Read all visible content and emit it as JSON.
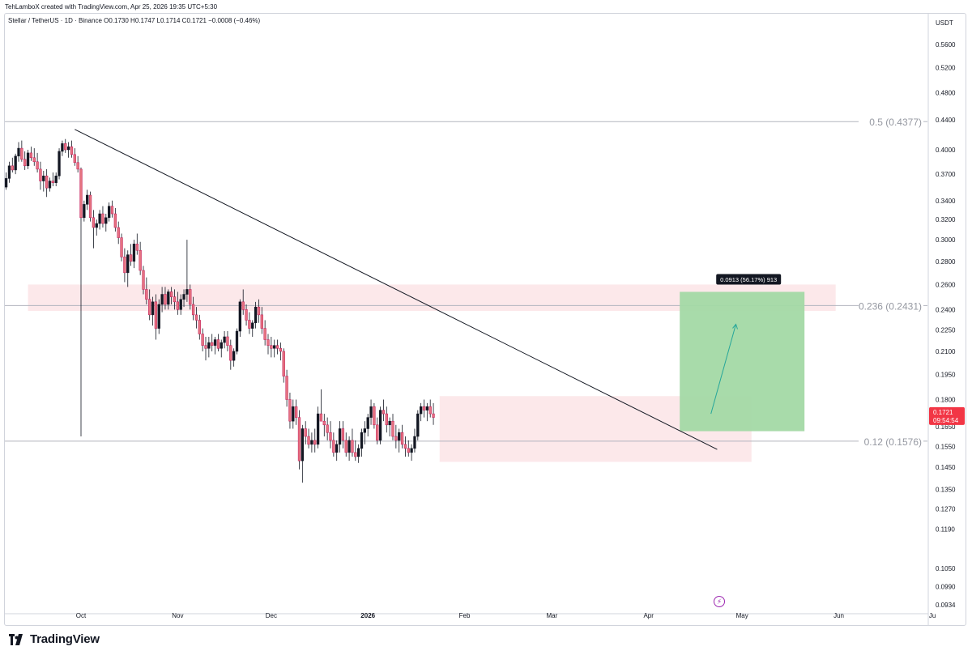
{
  "header": {
    "credit": "TehLamboX created with TradingView.com, Apr 25, 2026 19:35 UTC+5:30",
    "symbol": "Stellar / TetherUS · 1D · Binance",
    "ohlc": "O0.1730 H0.1747 L0.1714 C0.1721 −0.0008 (−0.46%)"
  },
  "brand": {
    "name": "TradingView",
    "logo": "tradingview-logo-icon"
  },
  "chart_data": {
    "type": "candlestick",
    "currency": "USDT",
    "ylim": [
      0.088,
      0.64
    ],
    "y_scale": "log",
    "y_ticks": [
      "0.5600",
      "0.5200",
      "0.4800",
      "0.4400",
      "0.4000",
      "0.3700",
      "0.3400",
      "0.3200",
      "0.3000",
      "0.2800",
      "0.2600",
      "0.2400",
      "0.2250",
      "0.2100",
      "0.1950",
      "0.1800",
      "0.1650",
      "0.1550",
      "0.1450",
      "0.1350",
      "0.1270",
      "0.1190",
      "0.1050",
      "0.0990",
      "0.0934"
    ],
    "x_ticks": [
      {
        "label": "Oct",
        "day": 0
      },
      {
        "label": "Nov",
        "day": 31
      },
      {
        "label": "Dec",
        "day": 61
      },
      {
        "label": "2026",
        "day": 92,
        "bold": true
      },
      {
        "label": "Feb",
        "day": 123
      },
      {
        "label": "Mar",
        "day": 151
      },
      {
        "label": "Apr",
        "day": 182
      },
      {
        "label": "May",
        "day": 212
      },
      {
        "label": "Jun",
        "day": 243
      },
      {
        "label": "Ju",
        "day": 273
      }
    ],
    "last_price": {
      "value": "0.1721",
      "countdown": "09:54:54",
      "color": "#f23645"
    },
    "fib_levels": [
      {
        "label": "0.5 (0.4377)",
        "price": 0.4377
      },
      {
        "label": "0.236 (0.2431)",
        "price": 0.2431
      },
      {
        "label": "0.12 (0.1576)",
        "price": 0.1576
      }
    ],
    "zones": [
      {
        "name": "resistance-zone",
        "day_from": -17,
        "day_to": 242,
        "price_top": 0.26,
        "price_bottom": 0.239,
        "color": "#fce4e6"
      },
      {
        "name": "range-zone",
        "day_from": 115,
        "day_to": 215,
        "price_top": 0.182,
        "price_bottom": 0.1475,
        "color": "#fce4e6"
      }
    ],
    "trendline": {
      "from": {
        "day": -2,
        "price": 0.427
      },
      "to": {
        "day": 204,
        "price": 0.1535
      }
    },
    "projection": {
      "label": "0.0913 (56.17%) 913",
      "day_from": 192,
      "day_to": 232,
      "price_top": 0.254,
      "price_bottom": 0.1627,
      "color": "#a3d9a5",
      "arrow_from": {
        "day": 202,
        "price": 0.172
      },
      "arrow_to": {
        "day": 210,
        "price": 0.229
      }
    },
    "candles": [
      [
        0.355,
        0.372,
        0.352,
        0.365
      ],
      [
        0.365,
        0.385,
        0.36,
        0.38
      ],
      [
        0.38,
        0.39,
        0.372,
        0.375
      ],
      [
        0.375,
        0.395,
        0.37,
        0.392
      ],
      [
        0.392,
        0.41,
        0.385,
        0.402
      ],
      [
        0.402,
        0.412,
        0.385,
        0.388
      ],
      [
        0.388,
        0.398,
        0.375,
        0.38
      ],
      [
        0.38,
        0.4,
        0.376,
        0.396
      ],
      [
        0.396,
        0.404,
        0.386,
        0.39
      ],
      [
        0.39,
        0.402,
        0.38,
        0.385
      ],
      [
        0.385,
        0.396,
        0.372,
        0.376
      ],
      [
        0.376,
        0.385,
        0.352,
        0.362
      ],
      [
        0.362,
        0.374,
        0.35,
        0.368
      ],
      [
        0.368,
        0.376,
        0.344,
        0.354
      ],
      [
        0.354,
        0.366,
        0.35,
        0.362
      ],
      [
        0.362,
        0.372,
        0.356,
        0.36
      ],
      [
        0.36,
        0.372,
        0.356,
        0.368
      ],
      [
        0.368,
        0.402,
        0.364,
        0.398
      ],
      [
        0.398,
        0.412,
        0.392,
        0.408
      ],
      [
        0.408,
        0.414,
        0.396,
        0.4
      ],
      [
        0.4,
        0.41,
        0.39,
        0.404
      ],
      [
        0.404,
        0.412,
        0.39,
        0.394
      ],
      [
        0.394,
        0.402,
        0.38,
        0.384
      ],
      [
        0.384,
        0.392,
        0.372,
        0.376
      ],
      [
        0.376,
        0.378,
        0.16,
        0.322
      ],
      [
        0.322,
        0.34,
        0.318,
        0.336
      ],
      [
        0.336,
        0.352,
        0.33,
        0.346
      ],
      [
        0.346,
        0.35,
        0.318,
        0.322
      ],
      [
        0.322,
        0.33,
        0.292,
        0.312
      ],
      [
        0.312,
        0.32,
        0.304,
        0.316
      ],
      [
        0.316,
        0.33,
        0.31,
        0.326
      ],
      [
        0.326,
        0.334,
        0.312,
        0.316
      ],
      [
        0.316,
        0.326,
        0.308,
        0.322
      ],
      [
        0.322,
        0.338,
        0.318,
        0.334
      ],
      [
        0.334,
        0.34,
        0.322,
        0.326
      ],
      [
        0.326,
        0.332,
        0.308,
        0.312
      ],
      [
        0.312,
        0.318,
        0.296,
        0.302
      ],
      [
        0.302,
        0.306,
        0.28,
        0.284
      ],
      [
        0.284,
        0.292,
        0.262,
        0.27
      ],
      [
        0.27,
        0.29,
        0.258,
        0.286
      ],
      [
        0.286,
        0.296,
        0.276,
        0.28
      ],
      [
        0.28,
        0.3,
        0.274,
        0.296
      ],
      [
        0.296,
        0.306,
        0.286,
        0.29
      ],
      [
        0.29,
        0.298,
        0.268,
        0.272
      ],
      [
        0.272,
        0.276,
        0.252,
        0.256
      ],
      [
        0.256,
        0.266,
        0.244,
        0.248
      ],
      [
        0.248,
        0.256,
        0.232,
        0.236
      ],
      [
        0.236,
        0.25,
        0.228,
        0.246
      ],
      [
        0.246,
        0.252,
        0.218,
        0.226
      ],
      [
        0.226,
        0.248,
        0.222,
        0.244
      ],
      [
        0.244,
        0.258,
        0.238,
        0.252
      ],
      [
        0.252,
        0.258,
        0.24,
        0.244
      ],
      [
        0.244,
        0.256,
        0.24,
        0.254
      ],
      [
        0.254,
        0.258,
        0.244,
        0.25
      ],
      [
        0.25,
        0.256,
        0.24,
        0.246
      ],
      [
        0.246,
        0.254,
        0.236,
        0.24
      ],
      [
        0.24,
        0.252,
        0.236,
        0.248
      ],
      [
        0.248,
        0.256,
        0.242,
        0.252
      ],
      [
        0.252,
        0.3,
        0.246,
        0.256
      ],
      [
        0.256,
        0.26,
        0.24,
        0.244
      ],
      [
        0.244,
        0.25,
        0.232,
        0.236
      ],
      [
        0.236,
        0.242,
        0.226,
        0.232
      ],
      [
        0.232,
        0.236,
        0.218,
        0.222
      ],
      [
        0.222,
        0.226,
        0.21,
        0.214
      ],
      [
        0.214,
        0.22,
        0.204,
        0.212
      ],
      [
        0.212,
        0.22,
        0.206,
        0.216
      ],
      [
        0.216,
        0.222,
        0.21,
        0.214
      ],
      [
        0.214,
        0.22,
        0.208,
        0.218
      ],
      [
        0.218,
        0.222,
        0.21,
        0.212
      ],
      [
        0.212,
        0.218,
        0.206,
        0.216
      ],
      [
        0.216,
        0.224,
        0.212,
        0.22
      ],
      [
        0.22,
        0.224,
        0.21,
        0.214
      ],
      [
        0.214,
        0.218,
        0.198,
        0.204
      ],
      [
        0.204,
        0.212,
        0.2,
        0.21
      ],
      [
        0.21,
        0.226,
        0.208,
        0.224
      ],
      [
        0.224,
        0.248,
        0.22,
        0.246
      ],
      [
        0.246,
        0.256,
        0.236,
        0.24
      ],
      [
        0.24,
        0.244,
        0.228,
        0.232
      ],
      [
        0.232,
        0.238,
        0.222,
        0.226
      ],
      [
        0.226,
        0.232,
        0.22,
        0.23
      ],
      [
        0.23,
        0.246,
        0.226,
        0.242
      ],
      [
        0.242,
        0.248,
        0.23,
        0.236
      ],
      [
        0.236,
        0.242,
        0.222,
        0.226
      ],
      [
        0.226,
        0.232,
        0.214,
        0.218
      ],
      [
        0.218,
        0.222,
        0.208,
        0.214
      ],
      [
        0.214,
        0.22,
        0.206,
        0.212
      ],
      [
        0.212,
        0.218,
        0.206,
        0.214
      ],
      [
        0.214,
        0.218,
        0.208,
        0.212
      ],
      [
        0.212,
        0.216,
        0.204,
        0.21
      ],
      [
        0.21,
        0.212,
        0.19,
        0.194
      ],
      [
        0.194,
        0.198,
        0.176,
        0.18
      ],
      [
        0.18,
        0.184,
        0.164,
        0.168
      ],
      [
        0.168,
        0.18,
        0.164,
        0.176
      ],
      [
        0.176,
        0.18,
        0.166,
        0.17
      ],
      [
        0.17,
        0.174,
        0.144,
        0.148
      ],
      [
        0.148,
        0.166,
        0.138,
        0.164
      ],
      [
        0.164,
        0.168,
        0.156,
        0.16
      ],
      [
        0.16,
        0.164,
        0.154,
        0.156
      ],
      [
        0.156,
        0.162,
        0.152,
        0.158
      ],
      [
        0.158,
        0.164,
        0.152,
        0.156
      ],
      [
        0.156,
        0.176,
        0.154,
        0.172
      ],
      [
        0.172,
        0.186,
        0.168,
        0.168
      ],
      [
        0.168,
        0.172,
        0.16,
        0.166
      ],
      [
        0.166,
        0.17,
        0.158,
        0.162
      ],
      [
        0.162,
        0.168,
        0.154,
        0.158
      ],
      [
        0.158,
        0.162,
        0.15,
        0.152
      ],
      [
        0.152,
        0.158,
        0.148,
        0.156
      ],
      [
        0.156,
        0.168,
        0.152,
        0.164
      ],
      [
        0.164,
        0.168,
        0.154,
        0.158
      ],
      [
        0.158,
        0.162,
        0.15,
        0.152
      ],
      [
        0.152,
        0.16,
        0.148,
        0.158
      ],
      [
        0.158,
        0.164,
        0.15,
        0.152
      ],
      [
        0.152,
        0.158,
        0.148,
        0.15
      ],
      [
        0.15,
        0.156,
        0.147,
        0.154
      ],
      [
        0.154,
        0.164,
        0.15,
        0.162
      ],
      [
        0.162,
        0.168,
        0.156,
        0.164
      ],
      [
        0.164,
        0.172,
        0.16,
        0.17
      ],
      [
        0.17,
        0.18,
        0.166,
        0.176
      ],
      [
        0.176,
        0.178,
        0.164,
        0.166
      ],
      [
        0.166,
        0.17,
        0.156,
        0.158
      ],
      [
        0.158,
        0.176,
        0.156,
        0.174
      ],
      [
        0.174,
        0.18,
        0.168,
        0.172
      ],
      [
        0.172,
        0.176,
        0.162,
        0.166
      ],
      [
        0.166,
        0.17,
        0.16,
        0.168
      ],
      [
        0.168,
        0.172,
        0.158,
        0.16
      ],
      [
        0.16,
        0.166,
        0.154,
        0.158
      ],
      [
        0.158,
        0.164,
        0.152,
        0.162
      ],
      [
        0.162,
        0.166,
        0.154,
        0.156
      ],
      [
        0.156,
        0.16,
        0.15,
        0.154
      ],
      [
        0.154,
        0.158,
        0.15,
        0.152
      ],
      [
        0.152,
        0.156,
        0.148,
        0.154
      ],
      [
        0.154,
        0.164,
        0.152,
        0.16
      ],
      [
        0.16,
        0.174,
        0.158,
        0.172
      ],
      [
        0.172,
        0.178,
        0.168,
        0.176
      ],
      [
        0.176,
        0.18,
        0.17,
        0.174
      ],
      [
        0.174,
        0.178,
        0.168,
        0.176
      ],
      [
        0.176,
        0.18,
        0.17,
        0.172
      ],
      [
        0.172,
        0.178,
        0.166,
        0.17
      ]
    ]
  }
}
